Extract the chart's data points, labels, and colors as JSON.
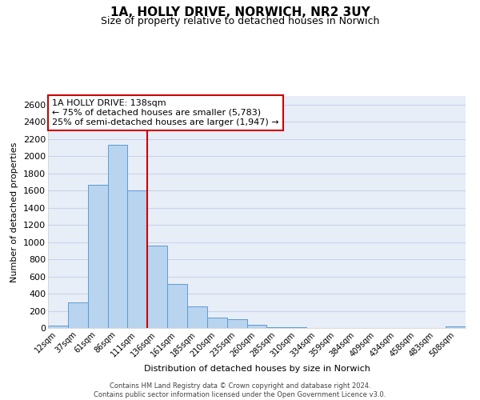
{
  "title": "1A, HOLLY DRIVE, NORWICH, NR2 3UY",
  "subtitle": "Size of property relative to detached houses in Norwich",
  "xlabel": "Distribution of detached houses by size in Norwich",
  "ylabel": "Number of detached properties",
  "bin_labels": [
    "12sqm",
    "37sqm",
    "61sqm",
    "86sqm",
    "111sqm",
    "136sqm",
    "161sqm",
    "185sqm",
    "210sqm",
    "235sqm",
    "260sqm",
    "285sqm",
    "310sqm",
    "334sqm",
    "359sqm",
    "384sqm",
    "409sqm",
    "434sqm",
    "458sqm",
    "483sqm",
    "508sqm"
  ],
  "bar_heights": [
    25,
    300,
    1670,
    2130,
    1600,
    960,
    510,
    250,
    120,
    100,
    35,
    10,
    5,
    2,
    2,
    2,
    2,
    2,
    2,
    2,
    20
  ],
  "bar_color": "#b8d4ee",
  "bar_edge_color": "#5b9bd5",
  "vline_x_idx": 5,
  "vline_color": "#cc0000",
  "annotation_title": "1A HOLLY DRIVE: 138sqm",
  "annotation_line1": "← 75% of detached houses are smaller (5,783)",
  "annotation_line2": "25% of semi-detached houses are larger (1,947) →",
  "annotation_box_color": "#ffffff",
  "annotation_box_edge_color": "#cc0000",
  "ylim": [
    0,
    2700
  ],
  "yticks": [
    0,
    200,
    400,
    600,
    800,
    1000,
    1200,
    1400,
    1600,
    1800,
    2000,
    2200,
    2400,
    2600
  ],
  "footer_line1": "Contains HM Land Registry data © Crown copyright and database right 2024.",
  "footer_line2": "Contains public sector information licensed under the Open Government Licence v3.0.",
  "background_color": "#ffffff",
  "plot_bg_color": "#e8eef8",
  "grid_color": "#c8d4e8"
}
